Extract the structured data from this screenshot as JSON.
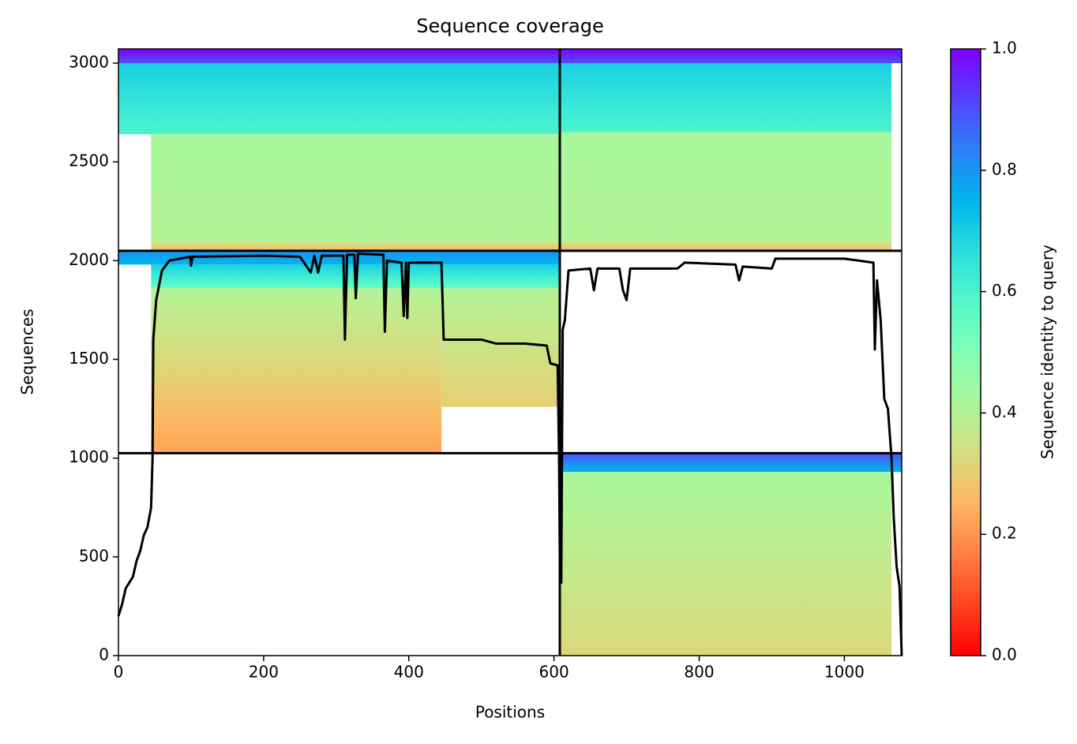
{
  "chart_data": {
    "type": "coverage",
    "title": "Sequence coverage",
    "xlabel": "Positions",
    "ylabel": "Sequences",
    "colorbar_label": "Sequence identity to query",
    "xlim": [
      0,
      1079
    ],
    "ylim": [
      0,
      3072
    ],
    "xticks": [
      0,
      200,
      400,
      600,
      800,
      1000
    ],
    "yticks": [
      0,
      500,
      1000,
      1500,
      2000,
      2500,
      3000
    ],
    "clim": [
      0,
      1
    ],
    "cticks": [
      {
        "value": 0,
        "label": "0.0"
      },
      {
        "value": 0.2,
        "label": "0.2"
      },
      {
        "value": 0.4,
        "label": "0.4"
      },
      {
        "value": 0.6,
        "label": "0.6"
      },
      {
        "value": 0.8,
        "label": "0.8"
      },
      {
        "value": 1,
        "label": "1.0"
      }
    ],
    "colormap": "rainbow_r",
    "bands": [
      {
        "x": [
          0,
          608
        ],
        "y": [
          3000,
          3072
        ],
        "identity": [
          0.9,
          1.0
        ]
      },
      {
        "x": [
          0,
          608
        ],
        "y": [
          2640,
          3000
        ],
        "identity": [
          0.6,
          0.7
        ]
      },
      {
        "x": [
          45,
          608
        ],
        "y": [
          2100,
          2640
        ],
        "identity": [
          0.4,
          0.42
        ]
      },
      {
        "x": [
          45,
          608
        ],
        "y": [
          2050,
          2100
        ],
        "identity": [
          0.25,
          0.38
        ]
      },
      {
        "x": [
          608,
          1079
        ],
        "y": [
          3000,
          3072
        ],
        "identity": [
          0.9,
          1.0
        ]
      },
      {
        "x": [
          608,
          1065
        ],
        "y": [
          2650,
          3000
        ],
        "identity": [
          0.6,
          0.7
        ]
      },
      {
        "x": [
          608,
          1065
        ],
        "y": [
          2100,
          2650
        ],
        "identity": [
          0.4,
          0.42
        ]
      },
      {
        "x": [
          608,
          1065
        ],
        "y": [
          2050,
          2100
        ],
        "identity": [
          0.25,
          0.38
        ]
      },
      {
        "x": [
          0,
          608
        ],
        "y": [
          1980,
          2050
        ],
        "identity": [
          0.75,
          0.8
        ]
      },
      {
        "x": [
          45,
          608
        ],
        "y": [
          1860,
          1980
        ],
        "identity": [
          0.55,
          0.7
        ]
      },
      {
        "x": [
          45,
          445
        ],
        "y": [
          1025,
          1860
        ],
        "identity": [
          0.22,
          0.4
        ]
      },
      {
        "x": [
          445,
          608
        ],
        "y": [
          1260,
          1860
        ],
        "identity": [
          0.3,
          0.4
        ]
      },
      {
        "x": [
          608,
          1079
        ],
        "y": [
          930,
          1025
        ],
        "identity": [
          0.75,
          0.9
        ]
      },
      {
        "x": [
          608,
          1065
        ],
        "y": [
          0,
          930
        ],
        "identity": [
          0.32,
          0.42
        ]
      }
    ],
    "dividers": {
      "x": [
        608
      ],
      "y": [
        1025,
        2050
      ]
    },
    "line_color": "#000000",
    "series": [
      {
        "name": "Coverage",
        "color": "#000000",
        "x": [
          0,
          5,
          10,
          20,
          25,
          30,
          35,
          40,
          45,
          47,
          48,
          52,
          60,
          70,
          99,
          100,
          102,
          105,
          200,
          250,
          265,
          270,
          275,
          280,
          310,
          312,
          315,
          325,
          327,
          330,
          365,
          367,
          370,
          390,
          393,
          396,
          398,
          400,
          445,
          448,
          500,
          520,
          560,
          590,
          595,
          605,
          607,
          608,
          610,
          612,
          615,
          620,
          650,
          655,
          660,
          690,
          695,
          700,
          705,
          770,
          780,
          850,
          855,
          860,
          900,
          905,
          1000,
          1040,
          1042,
          1045,
          1050,
          1055,
          1060,
          1062,
          1065,
          1068,
          1072,
          1076,
          1079
        ],
        "values": [
          200,
          260,
          340,
          400,
          480,
          530,
          610,
          650,
          750,
          1000,
          1600,
          1800,
          1950,
          2000,
          2020,
          1975,
          2020,
          2020,
          2025,
          2020,
          1940,
          2025,
          1940,
          2025,
          2025,
          1600,
          2030,
          2030,
          1810,
          2035,
          2030,
          1640,
          2000,
          1990,
          1720,
          1990,
          1710,
          1990,
          1990,
          1600,
          1600,
          1580,
          1580,
          1570,
          1480,
          1470,
          1000,
          520,
          370,
          1650,
          1700,
          1950,
          1960,
          1850,
          1960,
          1960,
          1850,
          1800,
          1960,
          1960,
          1990,
          1980,
          1900,
          1970,
          1960,
          2010,
          2010,
          1990,
          1550,
          1900,
          1700,
          1300,
          1250,
          1150,
          1000,
          700,
          450,
          350,
          0
        ]
      }
    ]
  }
}
